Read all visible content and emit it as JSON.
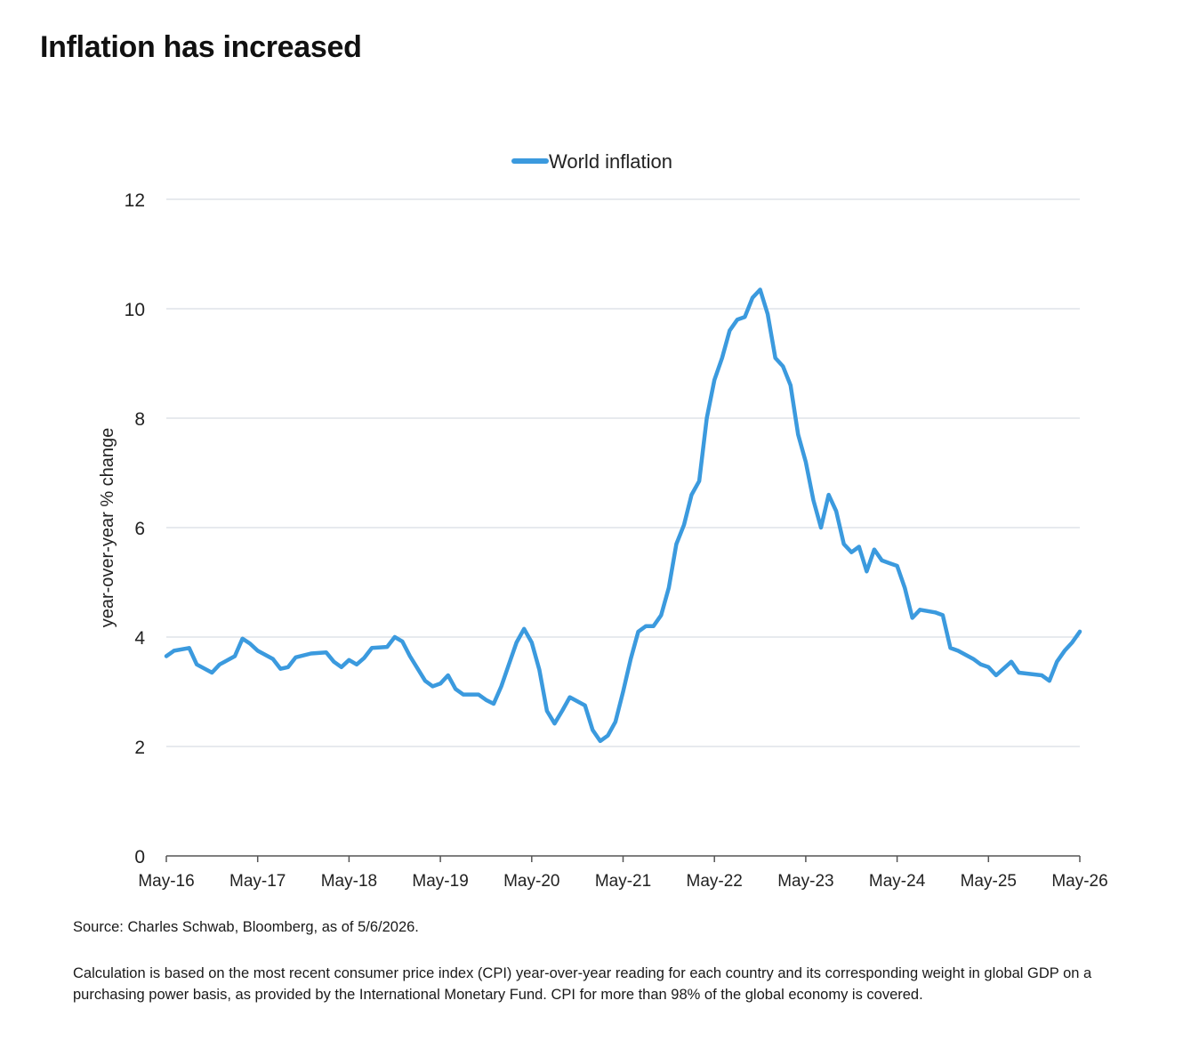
{
  "page": {
    "title": "Inflation has increased",
    "source": "Source: Charles Schwab, Bloomberg, as of 5/6/2026.",
    "footnote": "Calculation is based on the most recent consumer price index (CPI) year-over-year reading for each country and its corresponding weight in global GDP on a purchasing power basis, as provided by the International Monetary Fund. CPI for more than 98% of the global economy is covered."
  },
  "chart_data": {
    "type": "line",
    "title": "",
    "xlabel": "",
    "ylabel": "year-over-year % change",
    "x_range": [
      "May-16",
      "May-26"
    ],
    "ylim": [
      0,
      12
    ],
    "y_ticks": [
      0,
      2,
      4,
      6,
      8,
      10,
      12
    ],
    "x_ticks": [
      "May-16",
      "May-17",
      "May-18",
      "May-19",
      "May-20",
      "May-21",
      "May-22",
      "May-23",
      "May-24",
      "May-25",
      "May-26"
    ],
    "grid": true,
    "legend": "top-center",
    "series": [
      {
        "name": "World inflation",
        "color": "#3b9ade",
        "points": [
          [
            "May-16",
            3.65
          ],
          [
            "Jun-16",
            3.75
          ],
          [
            "Aug-16",
            3.8
          ],
          [
            "Sep-16",
            3.5
          ],
          [
            "Nov-16",
            3.35
          ],
          [
            "Dec-16",
            3.5
          ],
          [
            "Feb-17",
            3.65
          ],
          [
            "Mar-17",
            3.97
          ],
          [
            "Apr-17",
            3.88
          ],
          [
            "May-17",
            3.75
          ],
          [
            "Jul-17",
            3.6
          ],
          [
            "Aug-17",
            3.42
          ],
          [
            "Sep-17",
            3.45
          ],
          [
            "Oct-17",
            3.63
          ],
          [
            "Dec-17",
            3.7
          ],
          [
            "Feb-18",
            3.72
          ],
          [
            "Mar-18",
            3.55
          ],
          [
            "Apr-18",
            3.45
          ],
          [
            "May-18",
            3.58
          ],
          [
            "Jun-18",
            3.5
          ],
          [
            "Jul-18",
            3.62
          ],
          [
            "Aug-18",
            3.8
          ],
          [
            "Oct-18",
            3.82
          ],
          [
            "Nov-18",
            4.0
          ],
          [
            "Dec-18",
            3.92
          ],
          [
            "Jan-19",
            3.65
          ],
          [
            "Mar-19",
            3.2
          ],
          [
            "Apr-19",
            3.1
          ],
          [
            "May-19",
            3.15
          ],
          [
            "Jun-19",
            3.3
          ],
          [
            "Jul-19",
            3.05
          ],
          [
            "Aug-19",
            2.95
          ],
          [
            "Oct-19",
            2.95
          ],
          [
            "Nov-19",
            2.85
          ],
          [
            "Dec-19",
            2.78
          ],
          [
            "Jan-20",
            3.1
          ],
          [
            "Feb-20",
            3.5
          ],
          [
            "Mar-20",
            3.9
          ],
          [
            "Apr-20",
            4.15
          ],
          [
            "May-20",
            3.9
          ],
          [
            "Jun-20",
            3.4
          ],
          [
            "Jul-20",
            2.65
          ],
          [
            "Aug-20",
            2.42
          ],
          [
            "Sep-20",
            2.65
          ],
          [
            "Oct-20",
            2.9
          ],
          [
            "Dec-20",
            2.75
          ],
          [
            "Jan-21",
            2.3
          ],
          [
            "Feb-21",
            2.1
          ],
          [
            "Mar-21",
            2.2
          ],
          [
            "Apr-21",
            2.45
          ],
          [
            "May-21",
            3.0
          ],
          [
            "Jun-21",
            3.6
          ],
          [
            "Jul-21",
            4.1
          ],
          [
            "Aug-21",
            4.2
          ],
          [
            "Sep-21",
            4.2
          ],
          [
            "Oct-21",
            4.4
          ],
          [
            "Nov-21",
            4.9
          ],
          [
            "Dec-21",
            5.7
          ],
          [
            "Jan-22",
            6.05
          ],
          [
            "Feb-22",
            6.6
          ],
          [
            "Mar-22",
            6.85
          ],
          [
            "Apr-22",
            8.0
          ],
          [
            "May-22",
            8.7
          ],
          [
            "Jun-22",
            9.1
          ],
          [
            "Jul-22",
            9.6
          ],
          [
            "Aug-22",
            9.8
          ],
          [
            "Sep-22",
            9.85
          ],
          [
            "Oct-22",
            10.2
          ],
          [
            "Nov-22",
            10.35
          ],
          [
            "Dec-22",
            9.9
          ],
          [
            "Jan-23",
            9.1
          ],
          [
            "Feb-23",
            8.95
          ],
          [
            "Mar-23",
            8.6
          ],
          [
            "Apr-23",
            7.7
          ],
          [
            "May-23",
            7.2
          ],
          [
            "Jun-23",
            6.5
          ],
          [
            "Jul-23",
            6.0
          ],
          [
            "Aug-23",
            6.6
          ],
          [
            "Sep-23",
            6.3
          ],
          [
            "Oct-23",
            5.7
          ],
          [
            "Nov-23",
            5.55
          ],
          [
            "Dec-23",
            5.65
          ],
          [
            "Jan-24",
            5.2
          ],
          [
            "Feb-24",
            5.6
          ],
          [
            "Mar-24",
            5.4
          ],
          [
            "Apr-24",
            5.35
          ],
          [
            "May-24",
            5.3
          ],
          [
            "Jun-24",
            4.9
          ],
          [
            "Jul-24",
            4.35
          ],
          [
            "Aug-24",
            4.5
          ],
          [
            "Oct-24",
            4.45
          ],
          [
            "Nov-24",
            4.4
          ],
          [
            "Dec-24",
            3.8
          ],
          [
            "Jan-25",
            3.75
          ],
          [
            "Mar-25",
            3.6
          ],
          [
            "Apr-25",
            3.5
          ],
          [
            "May-25",
            3.45
          ],
          [
            "Jun-25",
            3.3
          ],
          [
            "Aug-25",
            3.55
          ],
          [
            "Sep-25",
            3.35
          ],
          [
            "Dec-25",
            3.3
          ],
          [
            "Jan-26",
            3.2
          ],
          [
            "Feb-26",
            3.55
          ],
          [
            "Mar-26",
            3.75
          ],
          [
            "Apr-26",
            3.9
          ],
          [
            "May-26",
            4.1
          ]
        ]
      }
    ]
  }
}
